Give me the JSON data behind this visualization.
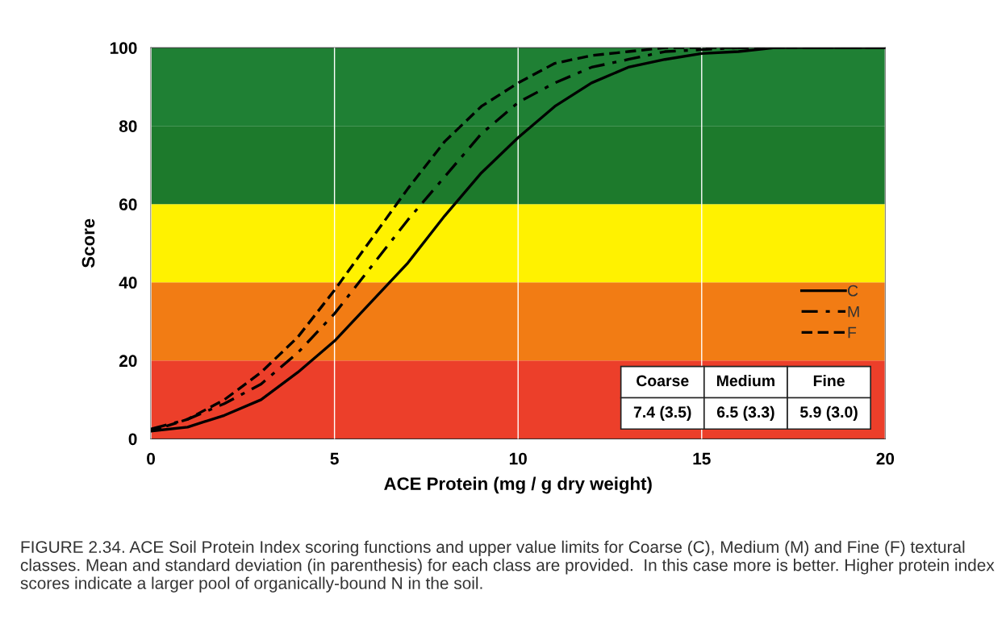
{
  "chart_data": {
    "type": "line",
    "xlabel": "ACE Protein (mg / g dry weight)",
    "ylabel": "Score",
    "x": [
      0,
      1,
      2,
      3,
      4,
      5,
      6,
      7,
      8,
      9,
      10,
      11,
      12,
      13,
      14,
      15,
      16,
      17,
      18,
      19,
      20
    ],
    "series": [
      {
        "name": "C",
        "color": "#000000",
        "line_style": "solid",
        "values": [
          2,
          3,
          6,
          10,
          17,
          25,
          35,
          45,
          57,
          68,
          77,
          85,
          91,
          95,
          97,
          98.5,
          99,
          100,
          100,
          100,
          100
        ]
      },
      {
        "name": "M",
        "color": "#000000",
        "line_style": "dashdot",
        "values": [
          2.5,
          5,
          9,
          14,
          22,
          32,
          44,
          56,
          67,
          78,
          86,
          91,
          95,
          97,
          99,
          99.5,
          100,
          100,
          100,
          100,
          100
        ]
      },
      {
        "name": "F",
        "color": "#000000",
        "line_style": "dashed",
        "values": [
          2,
          5,
          10,
          17,
          26,
          38,
          51,
          64,
          76,
          85,
          91,
          96,
          98,
          99,
          100,
          100,
          100,
          100,
          100,
          100,
          100
        ]
      }
    ],
    "xlim": [
      0,
      20
    ],
    "xticks": [
      0,
      5,
      10,
      15,
      20
    ],
    "ylim": [
      0,
      100
    ],
    "yticks": [
      0,
      20,
      40,
      60,
      80,
      100
    ],
    "bands": [
      {
        "axis": "y",
        "from": 0,
        "to": 20,
        "color": "#ec3f2a"
      },
      {
        "axis": "y",
        "from": 20,
        "to": 40,
        "color": "#f27c14"
      },
      {
        "axis": "y",
        "from": 40,
        "to": 60,
        "color": "#fff200"
      },
      {
        "axis": "y",
        "from": 60,
        "to": 80,
        "color": "#1d7a2c"
      },
      {
        "axis": "y",
        "from": 80,
        "to": 100,
        "color": "#1f8034"
      }
    ],
    "grid": "x",
    "legend": "right",
    "marker": "none",
    "annotations": [
      "Coarse",
      "Medium",
      "Fine",
      "7.4 (3.5)",
      "6.5 (3.3)",
      "5.9 (3.0)",
      "FIGURE 2.34. ACE Soil Protein Index scoring functions and upper value limits for Coarse (C), Medium (M) and Fine (F) textural classes. Mean and standard deviation (in parenthesis) for each class are provided.  In this case more is better. Higher protein index scores indicate a larger pool of organically-bound N in the soil."
    ]
  }
}
